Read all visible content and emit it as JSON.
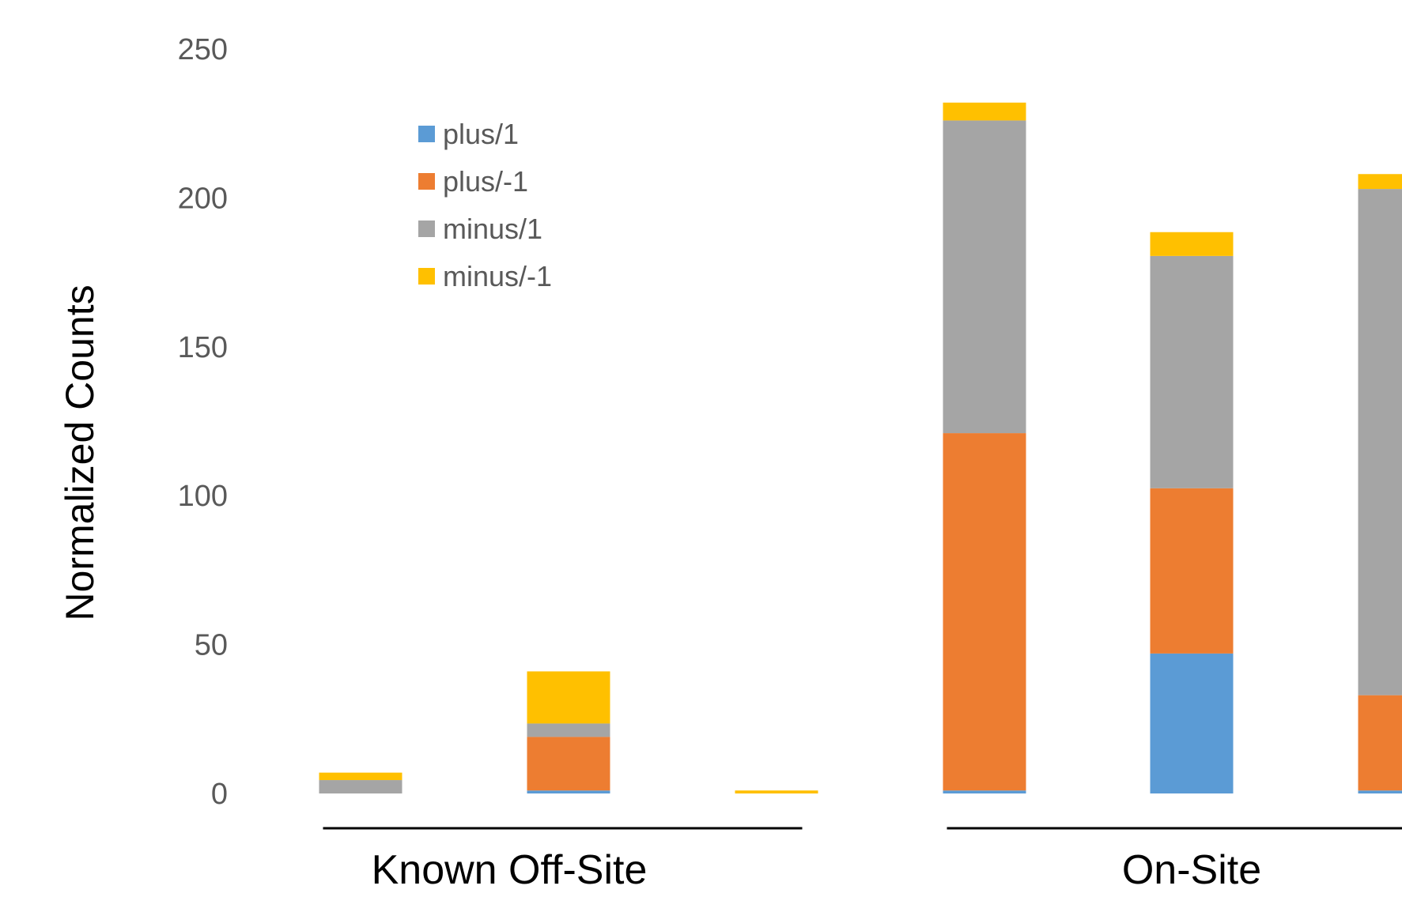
{
  "chart_data": {
    "type": "bar",
    "stacked": true,
    "ylabel": "Normalized Counts",
    "ylim": [
      0,
      250
    ],
    "yticks": [
      0,
      50,
      100,
      150,
      200,
      250
    ],
    "grid": false,
    "legend_position": "top-left",
    "groups": [
      {
        "label": "Known Off-Site",
        "bar_indices": [
          0,
          1,
          2
        ]
      },
      {
        "label": "On-Site",
        "bar_indices": [
          3,
          4,
          5
        ]
      }
    ],
    "bars": [
      {
        "values": [
          0,
          0,
          4.5,
          2.5
        ]
      },
      {
        "values": [
          1,
          18,
          4.5,
          17.5
        ]
      },
      {
        "values": [
          0,
          0,
          0,
          1
        ]
      },
      {
        "values": [
          1,
          120,
          105,
          6
        ]
      },
      {
        "values": [
          47,
          55.5,
          78,
          8
        ]
      },
      {
        "values": [
          1,
          32,
          170,
          5
        ]
      }
    ],
    "series": [
      {
        "name": "plus/1",
        "color": "#5B9BD5"
      },
      {
        "name": "plus/-1",
        "color": "#ED7D31"
      },
      {
        "name": "minus/1",
        "color": "#A5A5A5"
      },
      {
        "name": "minus/-1",
        "color": "#FFC000"
      }
    ]
  }
}
